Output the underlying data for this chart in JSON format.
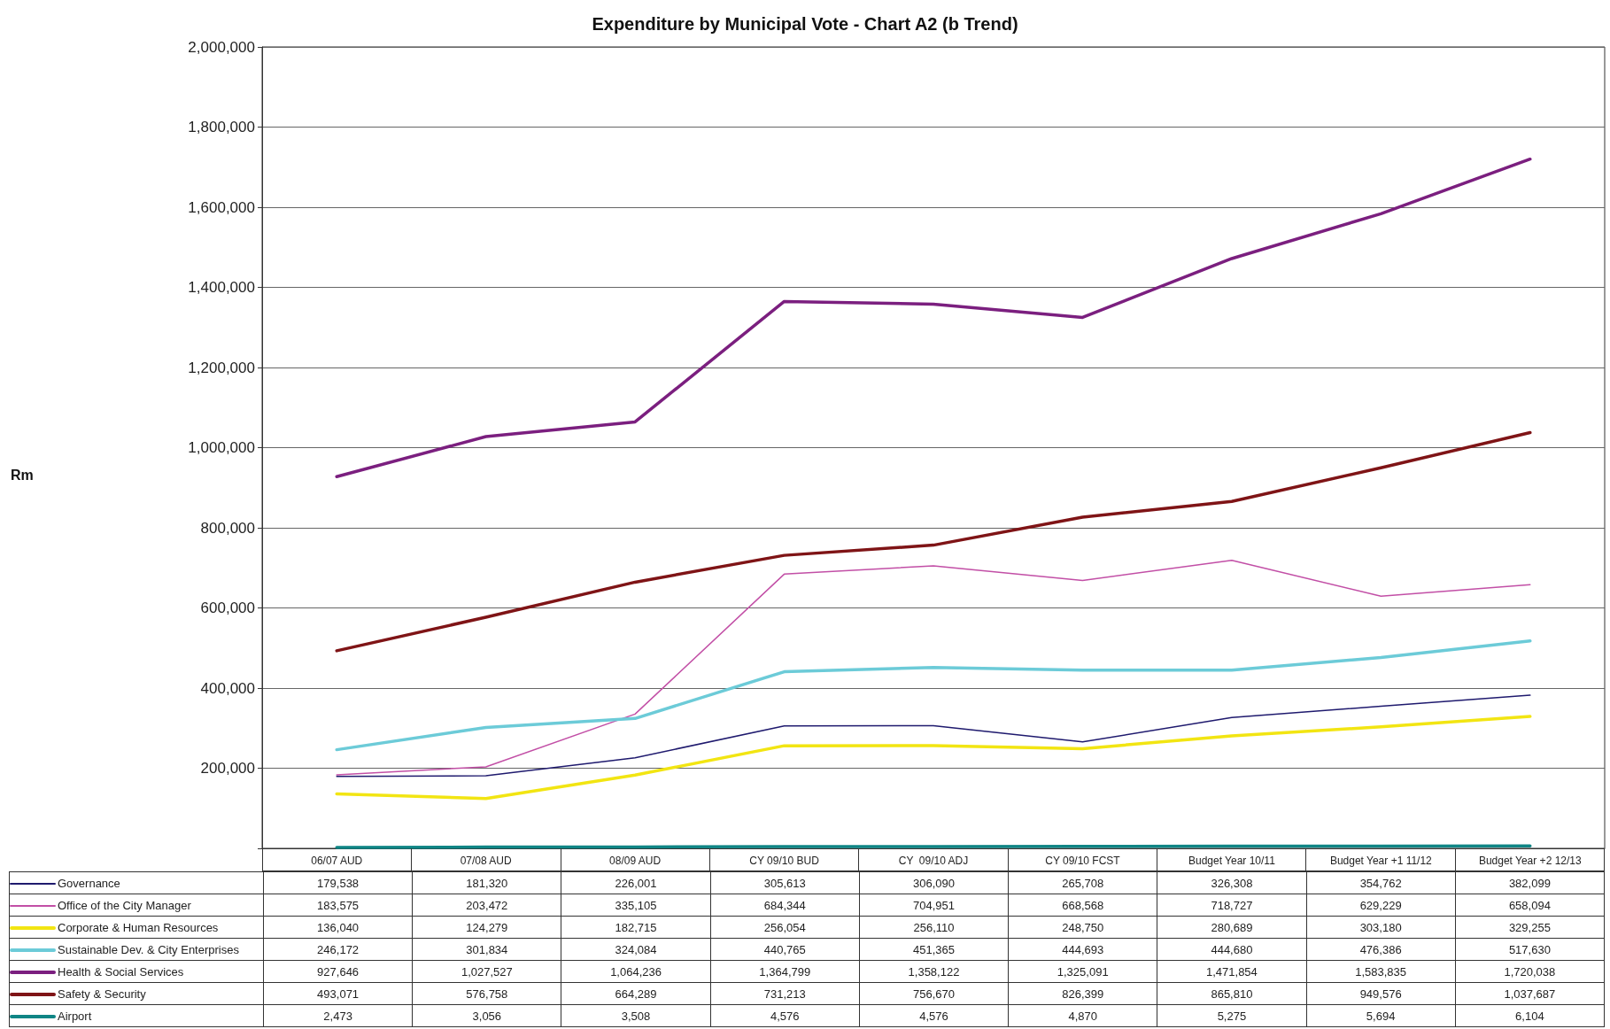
{
  "chart_data": {
    "type": "line",
    "title": "Expenditure by Municipal Vote - Chart A2 (b Trend)",
    "annotations": [
      "Rm"
    ],
    "categories": [
      "06/07 AUD",
      "07/08 AUD",
      "08/09 AUD",
      "CY 09/10 BUD",
      "CY  09/10 ADJ",
      "CY 09/10 FCST",
      "Budget Year 10/11",
      "Budget Year +1 11/12",
      "Budget Year +2 12/13"
    ],
    "series": [
      {
        "name": "Governance",
        "color": "#1f1a6e",
        "values": [
          179538,
          181320,
          226001,
          305613,
          306090,
          265708,
          326308,
          354762,
          382099
        ],
        "value_labels": [
          "179,538",
          "181,320",
          "226,001",
          "305,613",
          "306,090",
          "265,708",
          "326,308",
          "354,762",
          "382,099"
        ]
      },
      {
        "name": "Office of the City Manager",
        "color": "#c24fa6",
        "values": [
          183575,
          203472,
          335105,
          684344,
          704951,
          668568,
          718727,
          629229,
          658094
        ],
        "value_labels": [
          "183,575",
          "203,472",
          "335,105",
          "684,344",
          "704,951",
          "668,568",
          "718,727",
          "629,229",
          "658,094"
        ]
      },
      {
        "name": "Corporate & Human Resources",
        "color": "#f2e512",
        "values": [
          136040,
          124279,
          182715,
          256054,
          256110,
          248750,
          280689,
          303180,
          329255
        ],
        "value_labels": [
          "136,040",
          "124,279",
          "182,715",
          "256,054",
          "256,110",
          "248,750",
          "280,689",
          "303,180",
          "329,255"
        ]
      },
      {
        "name": "Sustainable Dev. & City Enterprises",
        "color": "#6ccbd8",
        "values": [
          246172,
          301834,
          324084,
          440765,
          451365,
          444693,
          444680,
          476386,
          517630
        ],
        "value_labels": [
          "246,172",
          "301,834",
          "324,084",
          "440,765",
          "451,365",
          "444,693",
          "444,680",
          "476,386",
          "517,630"
        ]
      },
      {
        "name": "Health & Social Services",
        "color": "#7b1f7f",
        "values": [
          927646,
          1027527,
          1064236,
          1364799,
          1358122,
          1325091,
          1471854,
          1583835,
          1720038
        ],
        "value_labels": [
          "927,646",
          "1,027,527",
          "1,064,236",
          "1,364,799",
          "1,358,122",
          "1,325,091",
          "1,471,854",
          "1,583,835",
          "1,720,038"
        ]
      },
      {
        "name": "Safety & Security",
        "color": "#7f1416",
        "values": [
          493071,
          576758,
          664289,
          731213,
          756670,
          826399,
          865810,
          949576,
          1037687
        ],
        "value_labels": [
          "493,071",
          "576,758",
          "664,289",
          "731,213",
          "756,670",
          "826,399",
          "865,810",
          "949,576",
          "1,037,687"
        ]
      },
      {
        "name": "Airport",
        "color": "#0f8585",
        "values": [
          2473,
          3056,
          3508,
          4576,
          4576,
          4870,
          5275,
          5694,
          6104
        ],
        "value_labels": [
          "2,473",
          "3,056",
          "3,508",
          "4,576",
          "4,576",
          "4,870",
          "5,275",
          "5,694",
          "6,104"
        ]
      }
    ],
    "ylim": [
      0,
      2000000
    ],
    "yticks": [
      {
        "value": 0,
        "label": null
      },
      {
        "value": 200000,
        "label": "200,000"
      },
      {
        "value": 400000,
        "label": "400,000"
      },
      {
        "value": 600000,
        "label": "600,000"
      },
      {
        "value": 800000,
        "label": "800,000"
      },
      {
        "value": 1000000,
        "label": "1,000,000"
      },
      {
        "value": 1200000,
        "label": "1,200,000"
      },
      {
        "value": 1400000,
        "label": "1,400,000"
      },
      {
        "value": 1600000,
        "label": "1,600,000"
      },
      {
        "value": 1800000,
        "label": "1,800,000"
      },
      {
        "value": 2000000,
        "label": "2,000,000"
      }
    ],
    "grid": "y",
    "legend": "bottom",
    "marker": "none",
    "line_style": "solid"
  }
}
